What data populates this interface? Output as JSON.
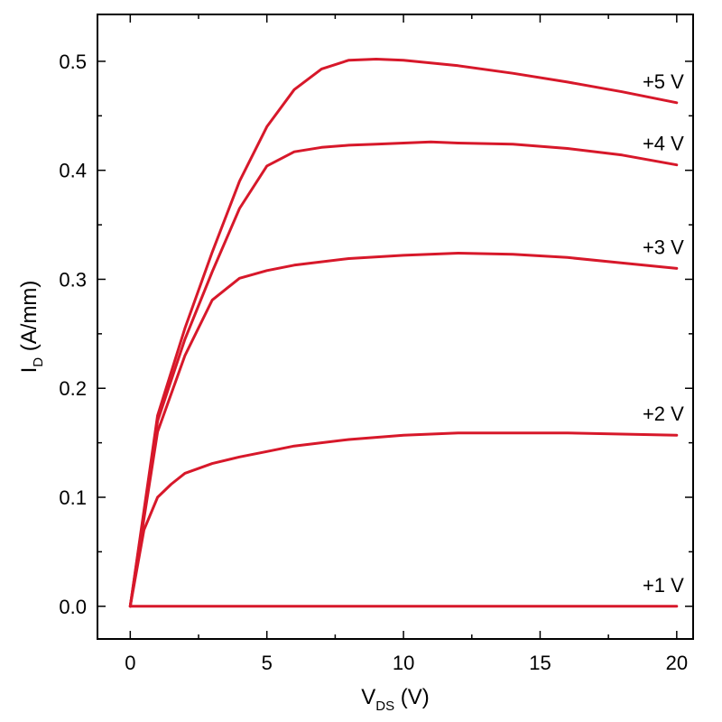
{
  "chart_data": {
    "type": "line",
    "title": "",
    "xlabel": "V",
    "xlabel_sub": "DS",
    "xlabel_unit": " (V)",
    "ylabel": "I",
    "ylabel_sub": "D",
    "ylabel_unit": " (A/mm)",
    "xlim": [
      -1.2,
      20.6
    ],
    "ylim": [
      -0.03,
      0.543
    ],
    "xticks": [
      0,
      5,
      10,
      15,
      20
    ],
    "yticks": [
      0.0,
      0.1,
      0.2,
      0.3,
      0.4,
      0.5
    ],
    "xtick_labels": [
      "0",
      "5",
      "10",
      "15",
      "20"
    ],
    "ytick_labels": [
      "0.0",
      "0.1",
      "0.2",
      "0.3",
      "0.4",
      "0.5"
    ],
    "grid": false,
    "line_color": "#d7182a",
    "series": [
      {
        "name": "+5 V",
        "x": [
          0,
          1,
          2,
          3,
          4,
          5,
          6,
          7,
          8,
          9,
          10,
          12,
          14,
          16,
          18,
          20
        ],
        "y": [
          0,
          0.175,
          0.255,
          0.325,
          0.39,
          0.44,
          0.474,
          0.493,
          0.501,
          0.502,
          0.501,
          0.496,
          0.489,
          0.481,
          0.472,
          0.462
        ]
      },
      {
        "name": "+4 V",
        "x": [
          0,
          1,
          2,
          3,
          4,
          5,
          6,
          7,
          8,
          9,
          10,
          11,
          12,
          14,
          16,
          18,
          20
        ],
        "y": [
          0,
          0.17,
          0.245,
          0.307,
          0.365,
          0.404,
          0.417,
          0.421,
          0.423,
          0.424,
          0.425,
          0.426,
          0.425,
          0.424,
          0.42,
          0.414,
          0.405
        ]
      },
      {
        "name": "+3 V",
        "x": [
          0,
          1,
          2,
          3,
          4,
          5,
          6,
          8,
          10,
          12,
          14,
          16,
          18,
          20
        ],
        "y": [
          0,
          0.16,
          0.23,
          0.281,
          0.301,
          0.308,
          0.313,
          0.319,
          0.322,
          0.324,
          0.323,
          0.32,
          0.315,
          0.31
        ]
      },
      {
        "name": "+2 V",
        "x": [
          0,
          0.5,
          1,
          1.5,
          2,
          3,
          4,
          5,
          6,
          8,
          10,
          12,
          14,
          16,
          18,
          20
        ],
        "y": [
          0,
          0.07,
          0.1,
          0.112,
          0.122,
          0.131,
          0.137,
          0.142,
          0.147,
          0.153,
          0.157,
          0.159,
          0.159,
          0.159,
          0.158,
          0.157
        ]
      },
      {
        "name": "+1 V",
        "x": [
          0,
          20
        ],
        "y": [
          0,
          0
        ]
      }
    ]
  }
}
